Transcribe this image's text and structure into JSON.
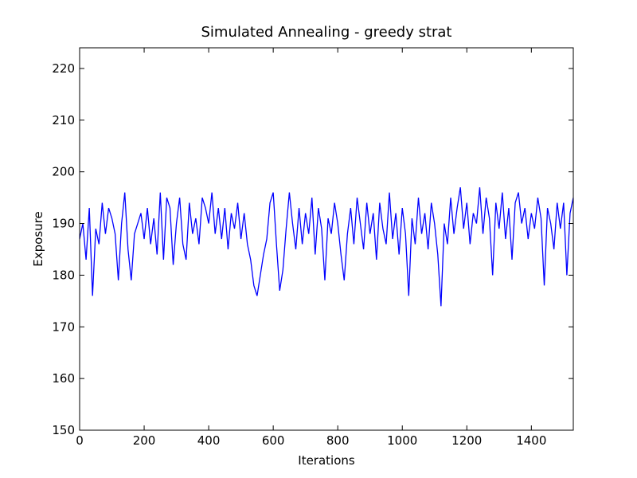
{
  "chart_data": {
    "type": "line",
    "title": "Simulated Annealing - greedy strat",
    "xlabel": "Iterations",
    "ylabel": "Exposure",
    "x": [
      0,
      10,
      20,
      30,
      40,
      50,
      60,
      70,
      80,
      90,
      100,
      110,
      120,
      130,
      140,
      150,
      160,
      170,
      180,
      190,
      200,
      210,
      220,
      230,
      240,
      250,
      260,
      270,
      280,
      290,
      300,
      310,
      320,
      330,
      340,
      350,
      360,
      370,
      380,
      390,
      400,
      410,
      420,
      430,
      440,
      450,
      460,
      470,
      480,
      490,
      500,
      510,
      520,
      530,
      540,
      550,
      560,
      570,
      580,
      590,
      600,
      610,
      620,
      630,
      640,
      650,
      660,
      670,
      680,
      690,
      700,
      710,
      720,
      730,
      740,
      750,
      760,
      770,
      780,
      790,
      800,
      810,
      820,
      830,
      840,
      850,
      860,
      870,
      880,
      890,
      900,
      910,
      920,
      930,
      940,
      950,
      960,
      970,
      980,
      990,
      1000,
      1010,
      1020,
      1030,
      1040,
      1050,
      1060,
      1070,
      1080,
      1090,
      1100,
      1110,
      1120,
      1130,
      1140,
      1150,
      1160,
      1170,
      1180,
      1190,
      1200,
      1210,
      1220,
      1230,
      1240,
      1250,
      1260,
      1270,
      1280,
      1290,
      1300,
      1310,
      1320,
      1330,
      1340,
      1350,
      1360,
      1370,
      1380,
      1390,
      1400,
      1410,
      1420,
      1430,
      1440,
      1450,
      1460,
      1470,
      1480,
      1490,
      1500,
      1510,
      1520,
      1530
    ],
    "series": [
      {
        "name": "Exposure",
        "color": "#0000ff",
        "values": [
          187,
          190,
          183,
          193,
          176,
          189,
          186,
          194,
          188,
          193,
          191,
          188,
          179,
          190,
          196,
          185,
          179,
          188,
          190,
          192,
          187,
          193,
          186,
          191,
          184,
          196,
          183,
          195,
          193,
          182,
          190,
          195,
          186,
          183,
          194,
          188,
          191,
          186,
          195,
          193,
          190,
          196,
          188,
          193,
          187,
          193,
          185,
          192,
          189,
          194,
          187,
          192,
          186,
          183,
          178,
          176,
          180,
          184,
          187,
          194,
          196,
          186,
          177,
          181,
          189,
          196,
          190,
          185,
          193,
          186,
          192,
          188,
          195,
          184,
          193,
          189,
          179,
          191,
          188,
          194,
          190,
          184,
          179,
          188,
          193,
          186,
          195,
          190,
          185,
          194,
          188,
          192,
          183,
          194,
          189,
          186,
          196,
          187,
          192,
          184,
          193,
          188,
          176,
          191,
          186,
          195,
          188,
          192,
          185,
          194,
          190,
          184,
          174,
          190,
          186,
          195,
          188,
          193,
          197,
          189,
          194,
          186,
          192,
          190,
          197,
          188,
          195,
          191,
          180,
          194,
          189,
          196,
          187,
          193,
          183,
          194,
          196,
          190,
          193,
          187,
          192,
          189,
          195,
          191,
          178,
          193,
          190,
          185,
          194,
          189,
          194,
          180,
          192,
          195
        ]
      }
    ],
    "xlim": [
      0,
      1530
    ],
    "ylim": [
      150,
      224
    ],
    "xticks": [
      0,
      200,
      400,
      600,
      800,
      1000,
      1200,
      1400
    ],
    "yticks": [
      150,
      160,
      170,
      180,
      190,
      200,
      210,
      220
    ]
  }
}
